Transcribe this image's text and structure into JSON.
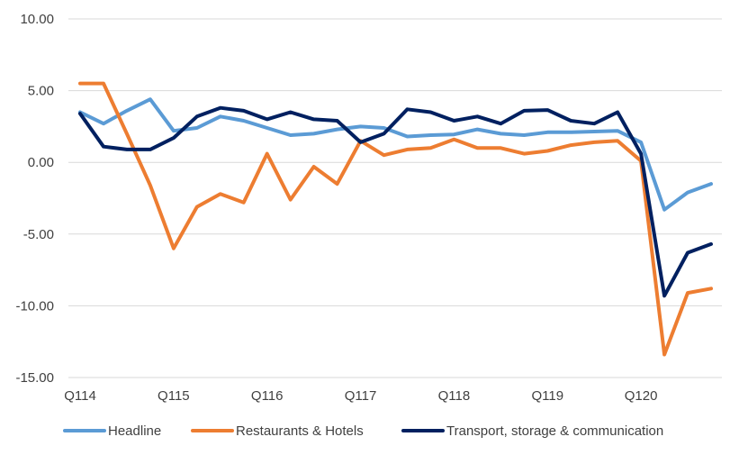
{
  "chart_data": {
    "type": "line",
    "title": "",
    "xlabel": "",
    "ylabel": "",
    "ylim": [
      -15,
      10
    ],
    "yticks": [
      10,
      5,
      0,
      -5,
      -10,
      -15
    ],
    "ytick_labels": [
      "10.00",
      "5.00",
      "0.00",
      "-5.00",
      "-10.00",
      "-15.00"
    ],
    "grid": "horizontal",
    "legend": "bottom",
    "x": [
      "Q114",
      "Q214",
      "Q314",
      "Q414",
      "Q115",
      "Q215",
      "Q315",
      "Q415",
      "Q116",
      "Q216",
      "Q316",
      "Q416",
      "Q117",
      "Q217",
      "Q317",
      "Q417",
      "Q118",
      "Q218",
      "Q318",
      "Q418",
      "Q119",
      "Q219",
      "Q319",
      "Q419",
      "Q120",
      "Q220",
      "Q320",
      "Q420"
    ],
    "x_tick_labels": [
      {
        "index": 0,
        "label": "Q114"
      },
      {
        "index": 4,
        "label": "Q115"
      },
      {
        "index": 8,
        "label": "Q116"
      },
      {
        "index": 12,
        "label": "Q117"
      },
      {
        "index": 16,
        "label": "Q118"
      },
      {
        "index": 20,
        "label": "Q119"
      },
      {
        "index": 24,
        "label": "Q120"
      }
    ],
    "series": [
      {
        "name": "Headline",
        "color": "#5B9BD5",
        "values": [
          3.5,
          2.7,
          3.6,
          4.4,
          2.2,
          2.4,
          3.2,
          2.9,
          2.4,
          1.9,
          2.0,
          2.3,
          2.5,
          2.4,
          1.8,
          1.9,
          1.95,
          2.3,
          2.0,
          1.9,
          2.1,
          2.1,
          2.15,
          2.2,
          1.4,
          -3.3,
          -2.1,
          -1.5
        ]
      },
      {
        "name": "Restaurants & Hotels",
        "color": "#ED7D31",
        "values": [
          5.5,
          5.5,
          2.0,
          -1.6,
          -6.0,
          -3.1,
          -2.2,
          -2.8,
          0.6,
          -2.6,
          -0.3,
          -1.5,
          1.5,
          0.5,
          0.9,
          1.0,
          1.6,
          1.0,
          1.0,
          0.6,
          0.8,
          1.2,
          1.4,
          1.5,
          0.1,
          -13.4,
          -9.1,
          -8.8
        ]
      },
      {
        "name": "Transport, storage & communication",
        "color": "#002060",
        "values": [
          3.4,
          1.1,
          0.9,
          0.9,
          1.7,
          3.2,
          3.8,
          3.6,
          3.0,
          3.5,
          3.0,
          2.9,
          1.4,
          2.0,
          3.7,
          3.5,
          2.9,
          3.2,
          2.7,
          3.6,
          3.65,
          2.9,
          2.7,
          3.5,
          0.6,
          -9.3,
          -6.3,
          -5.7
        ]
      }
    ]
  }
}
